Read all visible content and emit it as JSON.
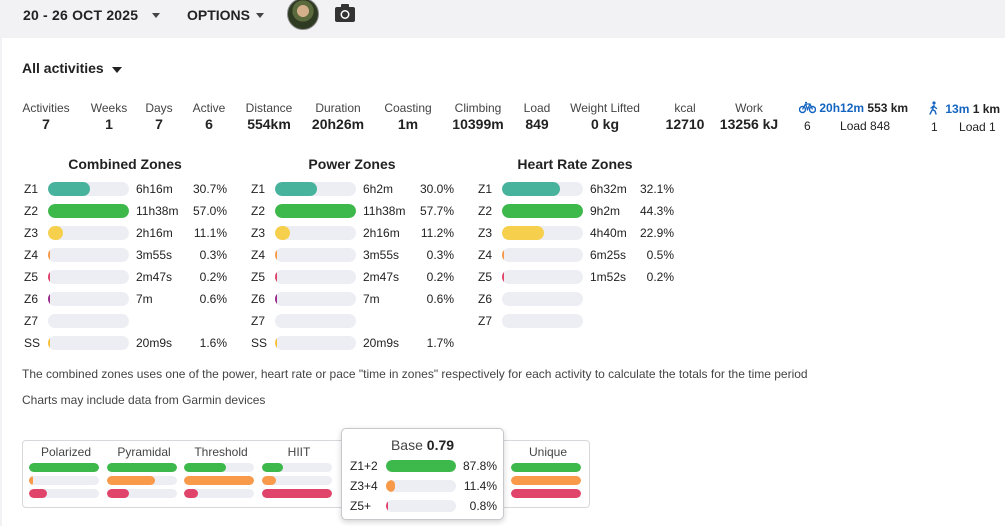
{
  "header": {
    "date_range": "20 - 26 OCT 2025",
    "options_label": "OPTIONS"
  },
  "icons": {
    "camera": "camera-icon",
    "bike": "bike-icon",
    "walk": "walk-icon",
    "caret": "caret-down-icon"
  },
  "filter": {
    "label": "All activities"
  },
  "stats": [
    {
      "label": "Activities",
      "value": "7"
    },
    {
      "label": "Weeks",
      "value": "1"
    },
    {
      "label": "Days",
      "value": "7"
    },
    {
      "label": "Active",
      "value": "6"
    },
    {
      "label": "Distance",
      "value": "554km"
    },
    {
      "label": "Duration",
      "value": "20h26m"
    },
    {
      "label": "Coasting",
      "value": "1m"
    },
    {
      "label": "Climbing",
      "value": "10399m"
    },
    {
      "label": "Load",
      "value": "849"
    },
    {
      "label": "Weight Lifted",
      "value": "0 kg"
    },
    {
      "label": "kcal",
      "value": "12710"
    },
    {
      "label": "Work",
      "value": "13256 kJ"
    }
  ],
  "sports": [
    {
      "time": "20h12m",
      "distance": "553 km",
      "count": "6",
      "load": "Load 848",
      "icon": "bike-icon"
    },
    {
      "time": "13m",
      "distance": "1 km",
      "count": "1",
      "load": "Load 1",
      "icon": "walk-icon"
    }
  ],
  "colors": {
    "teal": "#47b39d",
    "green": "#3db84a",
    "yellow": "#f6d04d",
    "orange": "#f89a4a",
    "red": "#e0446a",
    "track": "#eceef4",
    "link_blue": "#1565c0"
  },
  "zone_panels": [
    {
      "title": "Combined Zones",
      "rows": [
        {
          "zone": "Z1",
          "time": "6h16m",
          "pct": "30.7%",
          "fraction": 0.52,
          "color": "#47b39d"
        },
        {
          "zone": "Z2",
          "time": "11h38m",
          "pct": "57.0%",
          "fraction": 1.0,
          "color": "#3db84a"
        },
        {
          "zone": "Z3",
          "time": "2h16m",
          "pct": "11.1%",
          "fraction": 0.19,
          "color": "#f6d04d"
        },
        {
          "zone": "Z4",
          "time": "3m55s",
          "pct": "0.3%",
          "fraction": 0.02,
          "color": "#f89a4a"
        },
        {
          "zone": "Z5",
          "time": "2m47s",
          "pct": "0.2%",
          "fraction": 0.02,
          "color": "#e0446a"
        },
        {
          "zone": "Z6",
          "time": "7m",
          "pct": "0.6%",
          "fraction": 0.02,
          "color": "#9c2a8a"
        },
        {
          "zone": "Z7",
          "time": "",
          "pct": "",
          "fraction": 0,
          "color": "#6a2a8a"
        },
        {
          "zone": "SS",
          "time": "20m9s",
          "pct": "1.6%",
          "fraction": 0.03,
          "color": "#f6c23d"
        }
      ]
    },
    {
      "title": "Power Zones",
      "rows": [
        {
          "zone": "Z1",
          "time": "6h2m",
          "pct": "30.0%",
          "fraction": 0.52,
          "color": "#47b39d"
        },
        {
          "zone": "Z2",
          "time": "11h38m",
          "pct": "57.7%",
          "fraction": 1.0,
          "color": "#3db84a"
        },
        {
          "zone": "Z3",
          "time": "2h16m",
          "pct": "11.2%",
          "fraction": 0.19,
          "color": "#f6d04d"
        },
        {
          "zone": "Z4",
          "time": "3m55s",
          "pct": "0.3%",
          "fraction": 0.02,
          "color": "#f89a4a"
        },
        {
          "zone": "Z5",
          "time": "2m47s",
          "pct": "0.2%",
          "fraction": 0.02,
          "color": "#e0446a"
        },
        {
          "zone": "Z6",
          "time": "7m",
          "pct": "0.6%",
          "fraction": 0.02,
          "color": "#9c2a8a"
        },
        {
          "zone": "Z7",
          "time": "",
          "pct": "",
          "fraction": 0,
          "color": "#6a2a8a"
        },
        {
          "zone": "SS",
          "time": "20m9s",
          "pct": "1.7%",
          "fraction": 0.03,
          "color": "#f6c23d"
        }
      ]
    },
    {
      "title": "Heart Rate Zones",
      "rows": [
        {
          "zone": "Z1",
          "time": "6h32m",
          "pct": "32.1%",
          "fraction": 0.72,
          "color": "#47b39d"
        },
        {
          "zone": "Z2",
          "time": "9h2m",
          "pct": "44.3%",
          "fraction": 1.0,
          "color": "#3db84a"
        },
        {
          "zone": "Z3",
          "time": "4h40m",
          "pct": "22.9%",
          "fraction": 0.52,
          "color": "#f6d04d"
        },
        {
          "zone": "Z4",
          "time": "6m25s",
          "pct": "0.5%",
          "fraction": 0.02,
          "color": "#f89a4a"
        },
        {
          "zone": "Z5",
          "time": "1m52s",
          "pct": "0.2%",
          "fraction": 0.02,
          "color": "#e0446a"
        },
        {
          "zone": "Z6",
          "time": "",
          "pct": "",
          "fraction": 0,
          "color": "#9c2a8a"
        },
        {
          "zone": "Z7",
          "time": "",
          "pct": "",
          "fraction": 0,
          "color": "#6a2a8a"
        }
      ]
    }
  ],
  "notes": [
    "The combined zones uses one of the power, heart rate or pace \"time in zones\" respectively for each activity to calculate the totals for the time period",
    "Charts may include data from Garmin devices"
  ],
  "distributions": [
    {
      "label": "Polarized",
      "bars": [
        {
          "fraction": 1.0,
          "color": "#3db84a"
        },
        {
          "fraction": 0.06,
          "color": "#f89a4a"
        },
        {
          "fraction": 0.25,
          "color": "#e0446a"
        }
      ]
    },
    {
      "label": "Pyramidal",
      "bars": [
        {
          "fraction": 1.0,
          "color": "#3db84a"
        },
        {
          "fraction": 0.68,
          "color": "#f89a4a"
        },
        {
          "fraction": 0.32,
          "color": "#e0446a"
        }
      ]
    },
    {
      "label": "Threshold",
      "bars": [
        {
          "fraction": 0.6,
          "color": "#3db84a"
        },
        {
          "fraction": 1.0,
          "color": "#f89a4a"
        },
        {
          "fraction": 0.2,
          "color": "#e0446a"
        }
      ]
    },
    {
      "label": "HIIT",
      "bars": [
        {
          "fraction": 0.3,
          "color": "#3db84a"
        },
        {
          "fraction": 0.2,
          "color": "#f89a4a"
        },
        {
          "fraction": 1.0,
          "color": "#e0446a"
        }
      ]
    },
    {
      "label": "Unique",
      "bars": [
        {
          "fraction": 1.0,
          "color": "#3db84a"
        },
        {
          "fraction": 1.0,
          "color": "#f89a4a"
        },
        {
          "fraction": 1.0,
          "color": "#e0446a"
        }
      ]
    }
  ],
  "popup": {
    "label": "Base",
    "score": "0.79",
    "rows": [
      {
        "zone": "Z1+2",
        "pct": "87.8%",
        "fraction": 1.0,
        "color": "#3db84a"
      },
      {
        "zone": "Z3+4",
        "pct": "11.4%",
        "fraction": 0.13,
        "color": "#f89a4a"
      },
      {
        "zone": "Z5+",
        "pct": "0.8%",
        "fraction": 0.02,
        "color": "#e0446a"
      }
    ]
  }
}
